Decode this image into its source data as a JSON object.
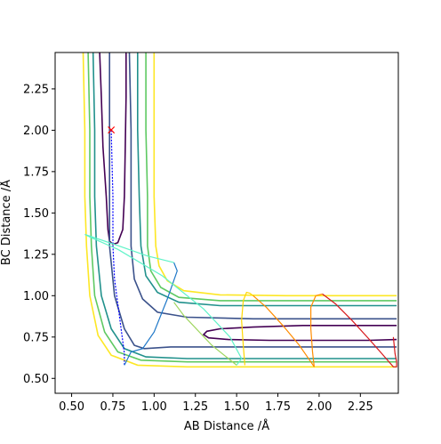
{
  "chart_data": {
    "type": "line",
    "title": "",
    "xlabel": "AB Distance /Å",
    "ylabel": "BC Distance /Å",
    "xlim": [
      0.4,
      2.48
    ],
    "ylim": [
      0.41,
      2.47
    ],
    "xticks": [
      0.5,
      0.75,
      1.0,
      1.25,
      1.5,
      1.75,
      2.0,
      2.25
    ],
    "xtick_labels": [
      "0.50",
      "0.75",
      "1.00",
      "1.25",
      "1.50",
      "1.75",
      "2.00",
      "2.25"
    ],
    "yticks": [
      0.5,
      0.75,
      1.0,
      1.25,
      1.5,
      1.75,
      2.0,
      2.25
    ],
    "ytick_labels": [
      "0.50",
      "0.75",
      "1.00",
      "1.25",
      "1.50",
      "1.75",
      "2.00",
      "2.25"
    ],
    "grid": false,
    "legend": "none",
    "contours": [
      {
        "color": "#440154",
        "paths": [
          [
            [
              0.67,
              2.47
            ],
            [
              0.68,
              2.2
            ],
            [
              0.69,
              1.9
            ],
            [
              0.71,
              1.6
            ],
            [
              0.72,
              1.4
            ],
            [
              0.73,
              1.33
            ],
            [
              0.75,
              1.31
            ],
            [
              0.78,
              1.32
            ],
            [
              0.81,
              1.4
            ],
            [
              0.82,
              1.6
            ],
            [
              0.825,
              1.9
            ],
            [
              0.83,
              2.2
            ],
            [
              0.83,
              2.47
            ]
          ],
          [
            [
              2.47,
              0.82
            ],
            [
              2.2,
              0.82
            ],
            [
              1.9,
              0.82
            ],
            [
              1.6,
              0.81
            ],
            [
              1.4,
              0.8
            ],
            [
              1.32,
              0.785
            ],
            [
              1.3,
              0.765
            ],
            [
              1.33,
              0.745
            ],
            [
              1.45,
              0.735
            ],
            [
              1.7,
              0.73
            ],
            [
              2.0,
              0.73
            ],
            [
              2.3,
              0.73
            ],
            [
              2.47,
              0.735
            ]
          ]
        ]
      },
      {
        "color": "#3b528b",
        "paths": [
          [
            [
              0.85,
              2.47
            ],
            [
              0.86,
              2.0
            ],
            [
              0.86,
              1.6
            ],
            [
              0.86,
              1.3
            ],
            [
              0.88,
              1.1
            ],
            [
              0.93,
              0.98
            ],
            [
              1.02,
              0.9
            ],
            [
              1.2,
              0.87
            ],
            [
              1.6,
              0.86
            ],
            [
              2.0,
              0.86
            ],
            [
              2.47,
              0.86
            ]
          ],
          [
            [
              0.73,
              2.47
            ],
            [
              0.73,
              2.0
            ],
            [
              0.73,
              1.6
            ],
            [
              0.73,
              1.3
            ],
            [
              0.76,
              1.0
            ],
            [
              0.82,
              0.8
            ],
            [
              0.88,
              0.7
            ],
            [
              0.94,
              0.68
            ],
            [
              1.1,
              0.69
            ],
            [
              1.4,
              0.69
            ],
            [
              1.8,
              0.69
            ],
            [
              2.47,
              0.69
            ]
          ]
        ]
      },
      {
        "color": "#21918c",
        "paths": [
          [
            [
              0.63,
              2.47
            ],
            [
              0.64,
              2.0
            ],
            [
              0.64,
              1.6
            ],
            [
              0.65,
              1.3
            ],
            [
              0.68,
              1.0
            ],
            [
              0.74,
              0.8
            ],
            [
              0.82,
              0.68
            ],
            [
              0.95,
              0.63
            ],
            [
              1.2,
              0.62
            ],
            [
              1.6,
              0.62
            ],
            [
              2.0,
              0.62
            ],
            [
              2.47,
              0.62
            ]
          ],
          [
            [
              0.9,
              2.47
            ],
            [
              0.9,
              2.0
            ],
            [
              0.91,
              1.6
            ],
            [
              0.92,
              1.3
            ],
            [
              0.95,
              1.12
            ],
            [
              1.02,
              1.02
            ],
            [
              1.15,
              0.96
            ],
            [
              1.4,
              0.94
            ],
            [
              1.8,
              0.94
            ],
            [
              2.47,
              0.94
            ]
          ]
        ]
      },
      {
        "color": "#5ec962",
        "paths": [
          [
            [
              0.6,
              2.47
            ],
            [
              0.61,
              2.0
            ],
            [
              0.61,
              1.6
            ],
            [
              0.62,
              1.3
            ],
            [
              0.64,
              1.0
            ],
            [
              0.7,
              0.78
            ],
            [
              0.78,
              0.66
            ],
            [
              0.92,
              0.61
            ],
            [
              1.2,
              0.6
            ],
            [
              1.6,
              0.6
            ],
            [
              2.0,
              0.6
            ],
            [
              2.47,
              0.6
            ]
          ],
          [
            [
              0.95,
              2.47
            ],
            [
              0.95,
              2.0
            ],
            [
              0.96,
              1.6
            ],
            [
              0.96,
              1.3
            ],
            [
              0.98,
              1.15
            ],
            [
              1.04,
              1.05
            ],
            [
              1.15,
              0.99
            ],
            [
              1.4,
              0.97
            ],
            [
              1.8,
              0.97
            ],
            [
              2.47,
              0.97
            ]
          ]
        ]
      },
      {
        "color": "#fde725",
        "paths": [
          [
            [
              0.57,
              2.47
            ],
            [
              0.58,
              2.0
            ],
            [
              0.58,
              1.6
            ],
            [
              0.59,
              1.3
            ],
            [
              0.61,
              1.0
            ],
            [
              0.66,
              0.76
            ],
            [
              0.74,
              0.64
            ],
            [
              0.9,
              0.58
            ],
            [
              1.2,
              0.57
            ],
            [
              1.6,
              0.57
            ],
            [
              2.0,
              0.57
            ],
            [
              2.47,
              0.57
            ]
          ],
          [
            [
              1.0,
              2.47
            ],
            [
              1.0,
              2.0
            ],
            [
              1.0,
              1.6
            ],
            [
              1.01,
              1.3
            ],
            [
              1.03,
              1.18
            ],
            [
              1.08,
              1.09
            ],
            [
              1.18,
              1.03
            ],
            [
              1.4,
              1.005
            ],
            [
              1.8,
              1.0
            ],
            [
              2.47,
              1.0
            ]
          ]
        ]
      }
    ],
    "trajectory_series": [
      {
        "color": "#0000ff",
        "points": [
          [
            0.74,
            2.0
          ],
          [
            0.745,
            1.8
          ],
          [
            0.75,
            1.6
          ],
          [
            0.75,
            1.4
          ],
          [
            0.75,
            1.3
          ],
          [
            0.76,
            1.1
          ],
          [
            0.78,
            0.95
          ],
          [
            0.8,
            0.8
          ],
          [
            0.82,
            0.65
          ],
          [
            0.82,
            0.58
          ]
        ]
      },
      {
        "color": "#1f78c8",
        "points": [
          [
            0.82,
            0.58
          ],
          [
            0.86,
            0.66
          ],
          [
            0.93,
            0.68
          ],
          [
            1.0,
            0.78
          ],
          [
            1.08,
            0.98
          ],
          [
            1.14,
            1.15
          ],
          [
            1.12,
            1.2
          ]
        ]
      },
      {
        "color": "#5ff3c8",
        "points": [
          [
            1.12,
            1.2
          ],
          [
            0.96,
            1.24
          ],
          [
            0.76,
            1.31
          ],
          [
            0.58,
            1.37
          ],
          [
            0.62,
            1.35
          ],
          [
            0.78,
            1.28
          ],
          [
            1.05,
            1.12
          ],
          [
            1.3,
            0.92
          ],
          [
            1.46,
            0.75
          ],
          [
            1.53,
            0.62
          ],
          [
            1.5,
            0.58
          ]
        ]
      },
      {
        "color": "#9dd55c",
        "points": [
          [
            1.5,
            0.58
          ],
          [
            1.35,
            0.7
          ],
          [
            1.18,
            0.88
          ],
          [
            1.12,
            0.96
          ]
        ]
      },
      {
        "color": "#ffd700",
        "points": [
          [
            1.55,
            0.58
          ],
          [
            1.54,
            0.7
          ],
          [
            1.53,
            0.85
          ],
          [
            1.54,
            0.97
          ],
          [
            1.56,
            1.02
          ],
          [
            1.58,
            1.015
          ],
          [
            1.6,
            1.0
          ]
        ]
      },
      {
        "color": "#ff8c00",
        "points": [
          [
            1.6,
            1.0
          ],
          [
            1.68,
            0.93
          ],
          [
            1.78,
            0.82
          ],
          [
            1.88,
            0.7
          ],
          [
            1.95,
            0.6
          ],
          [
            1.97,
            0.57
          ],
          [
            1.96,
            0.66
          ],
          [
            1.95,
            0.8
          ],
          [
            1.95,
            0.93
          ],
          [
            1.98,
            1.0
          ],
          [
            2.02,
            1.01
          ]
        ]
      },
      {
        "color": "#d7191c",
        "points": [
          [
            2.02,
            1.01
          ],
          [
            2.1,
            0.95
          ],
          [
            2.2,
            0.85
          ],
          [
            2.3,
            0.74
          ],
          [
            2.38,
            0.65
          ],
          [
            2.45,
            0.57
          ],
          [
            2.47,
            0.57
          ],
          [
            2.47,
            0.6
          ],
          [
            2.46,
            0.65
          ],
          [
            2.45,
            0.75
          ]
        ]
      }
    ],
    "marker": {
      "symbol": "×",
      "x": 0.74,
      "y": 2.0,
      "color": "#ff0000"
    }
  }
}
